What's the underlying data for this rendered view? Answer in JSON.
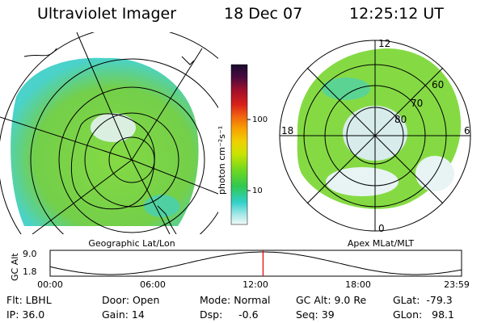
{
  "header": {
    "instrument": "Ultraviolet Imager",
    "date": "18 Dec 07",
    "time": "12:25:12 UT"
  },
  "left_map": {
    "caption": "Geographic Lat/Lon"
  },
  "right_map": {
    "caption": "Apex MLat/MLT",
    "mlt_labels": {
      "top": "12",
      "left": "18",
      "right": "6",
      "bottom": "0"
    },
    "lat_labels": [
      "60",
      "70",
      "80"
    ]
  },
  "colorbar": {
    "unit_label": "photon cm⁻²s⁻¹",
    "ticks": [
      "100",
      "10"
    ],
    "colors": [
      "#1a0a2e",
      "#3a0a3e",
      "#6a0a3a",
      "#a0102a",
      "#d8201a",
      "#f06010",
      "#f8a000",
      "#f0d000",
      "#d8e800",
      "#a0e000",
      "#60d820",
      "#30c840",
      "#20c8a0",
      "#40d8d0",
      "#a0e8e8",
      "#e8f4f4"
    ]
  },
  "timeline": {
    "axis_label": "GC Alt",
    "y_ticks": [
      "9.0",
      "1.8"
    ],
    "x_ticks": [
      "00:00",
      "06:00",
      "12:00",
      "18:00",
      "23:59"
    ],
    "current_time_fraction": 0.5175,
    "marker_color": "#e00000"
  },
  "info": {
    "filter": "Flt: LBHL",
    "ip": "IP: 36.0",
    "door": "Door: Open",
    "gain": "Gain: 14",
    "mode": "Mode: Normal",
    "dsp": "Dsp:     -0.6",
    "gc_alt": "GC Alt: 9.0 Re",
    "seq": "Seq: 39",
    "glat": "GLat:  -79.3",
    "glon": "GLon:   98.1"
  },
  "colors": {
    "aurora_green": "#7ed83a",
    "aurora_cyan": "#40d0c8",
    "aurora_pale": "#d8ecec"
  }
}
